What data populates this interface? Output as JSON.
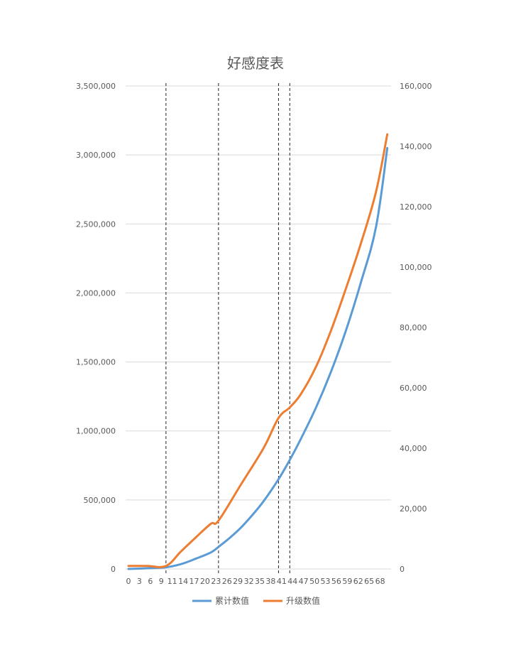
{
  "chart_data": {
    "type": "line",
    "title": "好感度表",
    "x_ticks": [
      0,
      3,
      6,
      9,
      11,
      14,
      17,
      20,
      23,
      26,
      29,
      32,
      35,
      38,
      41,
      44,
      47,
      50,
      53,
      56,
      59,
      62,
      65,
      68
    ],
    "x_range": [
      0,
      70
    ],
    "y_left_range": [
      0,
      3500000
    ],
    "y_left_ticks": [
      "0",
      "500,000",
      "1,000,000",
      "1,500,000",
      "2,000,000",
      "2,500,000",
      "3,000,000",
      "3,500,000"
    ],
    "y_left_tick_values": [
      0,
      500000,
      1000000,
      1500000,
      2000000,
      2500000,
      3000000,
      3500000
    ],
    "y_right_range": [
      0,
      160000
    ],
    "y_right_ticks": [
      "0",
      "20,000",
      "40,000",
      "60,000",
      "80,000",
      "100,000",
      "120,000",
      "140,000",
      "160,000"
    ],
    "y_right_tick_values": [
      0,
      20000,
      40000,
      60000,
      80000,
      100000,
      120000,
      140000,
      160000
    ],
    "vertical_markers": [
      10,
      24,
      40,
      43
    ],
    "series": [
      {
        "name": "累计数值",
        "axis": "left",
        "color": "#5b9bd5",
        "x": [
          0,
          5,
          10,
          14,
          18,
          22,
          24,
          27,
          30,
          33,
          36,
          40,
          43,
          46,
          50,
          54,
          58,
          62,
          66,
          69
        ],
        "values": [
          0,
          5000,
          12000,
          35000,
          75000,
          120000,
          160000,
          225000,
          300000,
          390000,
          490000,
          650000,
          790000,
          945000,
          1170000,
          1430000,
          1730000,
          2080000,
          2480000,
          3050000
        ]
      },
      {
        "name": "升级数值",
        "axis": "right",
        "color": "#ed7d31",
        "x": [
          0,
          5,
          10,
          14,
          18,
          22,
          24,
          30,
          36,
          40,
          43,
          46,
          50,
          54,
          58,
          62,
          66,
          69
        ],
        "values": [
          1000,
          1000,
          1000,
          5800,
          10500,
          15000,
          16000,
          28000,
          40000,
          50000,
          53500,
          58000,
          67000,
          79000,
          93000,
          108000,
          125000,
          144000
        ]
      }
    ]
  }
}
